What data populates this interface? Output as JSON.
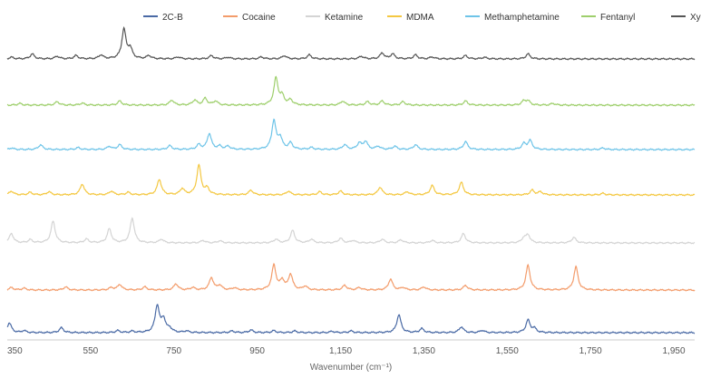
{
  "chart_data": {
    "type": "line",
    "xlabel": "Wavenumber (cm⁻¹)",
    "ylabel": "",
    "xlim": [
      350,
      2000
    ],
    "x_ticks": [
      350,
      550,
      750,
      950,
      1150,
      1350,
      1550,
      1750,
      1950
    ],
    "x_tick_labels": [
      "350",
      "550",
      "750",
      "950",
      "1,150",
      "1,350",
      "1,550",
      "1,750",
      "1,950"
    ],
    "grid": false,
    "legend_position": "top-right",
    "series": [
      {
        "name": "2C-B",
        "color": "#4a6aa5",
        "peaks": [
          [
            355,
            0.3
          ],
          [
            390,
            0.06
          ],
          [
            480,
            0.15
          ],
          [
            615,
            0.06
          ],
          [
            650,
            0.04
          ],
          [
            710,
            0.82
          ],
          [
            725,
            0.4
          ],
          [
            740,
            0.12
          ],
          [
            780,
            0.05
          ],
          [
            890,
            0.05
          ],
          [
            935,
            0.08
          ],
          [
            990,
            0.06
          ],
          [
            1040,
            0.05
          ],
          [
            1130,
            0.04
          ],
          [
            1175,
            0.05
          ],
          [
            1290,
            0.55
          ],
          [
            1345,
            0.12
          ],
          [
            1440,
            0.18
          ],
          [
            1490,
            0.07
          ],
          [
            1600,
            0.38
          ],
          [
            1615,
            0.12
          ]
        ]
      },
      {
        "name": "Cocaine",
        "color": "#f39c6b",
        "peaks": [
          [
            360,
            0.08
          ],
          [
            390,
            0.06
          ],
          [
            490,
            0.1
          ],
          [
            600,
            0.08
          ],
          [
            620,
            0.18
          ],
          [
            680,
            0.1
          ],
          [
            755,
            0.2
          ],
          [
            795,
            0.08
          ],
          [
            840,
            0.4
          ],
          [
            860,
            0.15
          ],
          [
            895,
            0.07
          ],
          [
            990,
            0.8
          ],
          [
            1010,
            0.3
          ],
          [
            1030,
            0.5
          ],
          [
            1065,
            0.12
          ],
          [
            1160,
            0.15
          ],
          [
            1195,
            0.08
          ],
          [
            1270,
            0.35
          ],
          [
            1300,
            0.08
          ],
          [
            1350,
            0.1
          ],
          [
            1450,
            0.15
          ],
          [
            1600,
            0.8
          ],
          [
            1715,
            0.75
          ]
        ]
      },
      {
        "name": "Ketamine",
        "color": "#d4d4d4",
        "peaks": [
          [
            360,
            0.3
          ],
          [
            405,
            0.1
          ],
          [
            460,
            0.7
          ],
          [
            540,
            0.12
          ],
          [
            595,
            0.45
          ],
          [
            650,
            0.8
          ],
          [
            720,
            0.12
          ],
          [
            820,
            0.08
          ],
          [
            860,
            0.07
          ],
          [
            995,
            0.12
          ],
          [
            1035,
            0.4
          ],
          [
            1080,
            0.12
          ],
          [
            1150,
            0.15
          ],
          [
            1180,
            0.08
          ],
          [
            1250,
            0.12
          ],
          [
            1295,
            0.1
          ],
          [
            1370,
            0.08
          ],
          [
            1445,
            0.3
          ],
          [
            1590,
            0.15
          ],
          [
            1600,
            0.25
          ],
          [
            1710,
            0.18
          ]
        ]
      },
      {
        "name": "MDMA",
        "color": "#f4c842",
        "peaks": [
          [
            360,
            0.12
          ],
          [
            405,
            0.08
          ],
          [
            450,
            0.1
          ],
          [
            530,
            0.35
          ],
          [
            600,
            0.12
          ],
          [
            640,
            0.08
          ],
          [
            715,
            0.5
          ],
          [
            770,
            0.2
          ],
          [
            810,
            0.95
          ],
          [
            830,
            0.2
          ],
          [
            935,
            0.15
          ],
          [
            1025,
            0.12
          ],
          [
            1100,
            0.1
          ],
          [
            1150,
            0.12
          ],
          [
            1245,
            0.25
          ],
          [
            1310,
            0.1
          ],
          [
            1370,
            0.3
          ],
          [
            1440,
            0.4
          ],
          [
            1610,
            0.15
          ],
          [
            1630,
            0.1
          ],
          [
            1780,
            0.05
          ]
        ]
      },
      {
        "name": "Methamphetamine",
        "color": "#6ec4e8",
        "peaks": [
          [
            360,
            0.05
          ],
          [
            430,
            0.15
          ],
          [
            520,
            0.06
          ],
          [
            595,
            0.1
          ],
          [
            620,
            0.15
          ],
          [
            740,
            0.12
          ],
          [
            810,
            0.15
          ],
          [
            835,
            0.5
          ],
          [
            860,
            0.1
          ],
          [
            880,
            0.1
          ],
          [
            990,
            0.9
          ],
          [
            1005,
            0.35
          ],
          [
            1030,
            0.2
          ],
          [
            1080,
            0.06
          ],
          [
            1160,
            0.15
          ],
          [
            1195,
            0.2
          ],
          [
            1210,
            0.25
          ],
          [
            1240,
            0.1
          ],
          [
            1280,
            0.1
          ],
          [
            1330,
            0.15
          ],
          [
            1450,
            0.25
          ],
          [
            1590,
            0.18
          ],
          [
            1605,
            0.28
          ],
          [
            1780,
            0.05
          ]
        ]
      },
      {
        "name": "Fentanyl",
        "color": "#9ecf6c",
        "peaks": [
          [
            380,
            0.05
          ],
          [
            470,
            0.1
          ],
          [
            530,
            0.06
          ],
          [
            620,
            0.12
          ],
          [
            745,
            0.15
          ],
          [
            800,
            0.15
          ],
          [
            825,
            0.2
          ],
          [
            850,
            0.12
          ],
          [
            995,
            0.8
          ],
          [
            1010,
            0.25
          ],
          [
            1030,
            0.15
          ],
          [
            1155,
            0.12
          ],
          [
            1215,
            0.1
          ],
          [
            1250,
            0.12
          ],
          [
            1300,
            0.1
          ],
          [
            1450,
            0.12
          ],
          [
            1590,
            0.12
          ],
          [
            1600,
            0.12
          ],
          [
            1660,
            0.05
          ]
        ]
      },
      {
        "name": "Xylazine",
        "color": "#555555",
        "peaks": [
          [
            360,
            0.05
          ],
          [
            410,
            0.15
          ],
          [
            470,
            0.08
          ],
          [
            515,
            0.1
          ],
          [
            575,
            0.12
          ],
          [
            630,
            0.9
          ],
          [
            645,
            0.3
          ],
          [
            690,
            0.1
          ],
          [
            760,
            0.06
          ],
          [
            840,
            0.1
          ],
          [
            880,
            0.05
          ],
          [
            960,
            0.06
          ],
          [
            1015,
            0.1
          ],
          [
            1075,
            0.12
          ],
          [
            1200,
            0.08
          ],
          [
            1250,
            0.18
          ],
          [
            1275,
            0.15
          ],
          [
            1330,
            0.12
          ],
          [
            1370,
            0.06
          ],
          [
            1450,
            0.1
          ],
          [
            1495,
            0.05
          ],
          [
            1600,
            0.15
          ]
        ]
      }
    ]
  }
}
